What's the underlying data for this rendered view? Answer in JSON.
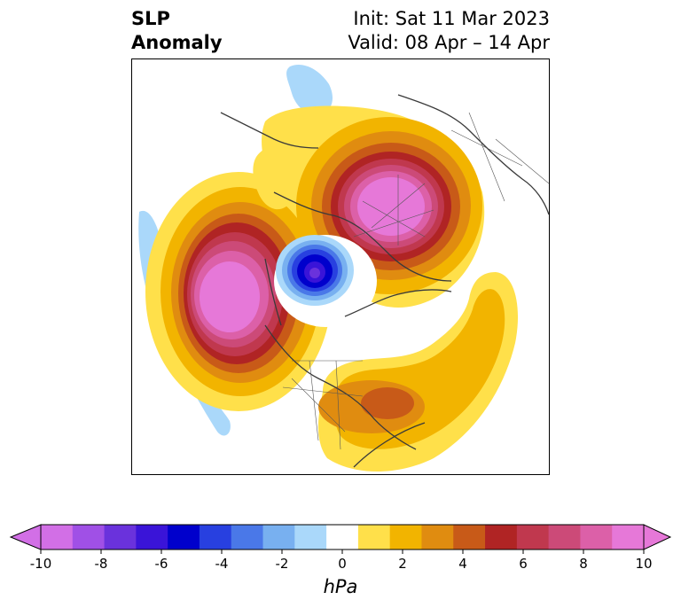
{
  "header": {
    "title_line1": "SLP",
    "title_line2": "Anomaly",
    "init_text": "Init: Sat 11 Mar 2023",
    "valid_text": "Valid: 08 Apr – 14 Apr"
  },
  "colorbar": {
    "levels": [
      -10,
      -9,
      -8,
      -7,
      -6,
      -5,
      -4,
      -3,
      -2,
      -1,
      1,
      2,
      3,
      4,
      5,
      6,
      7,
      8,
      9,
      10
    ],
    "colors": [
      "#d26fe6",
      "#a050e6",
      "#6a32dc",
      "#3a14d8",
      "#0000cc",
      "#2840e0",
      "#4a78e8",
      "#78b0f0",
      "#aad8fa",
      "#ffffff",
      "#ffe04a",
      "#f2b400",
      "#e08c10",
      "#c85a18",
      "#b02424",
      "#c0384e",
      "#cc4a78",
      "#dc60a8",
      "#e678d8"
    ],
    "under_color": "#d26fe6",
    "over_color": "#e678d8",
    "tick_labels": [
      "-10",
      "-8",
      "-6",
      "-4",
      "-2",
      "0",
      "2",
      "4",
      "6",
      "8",
      "10"
    ],
    "units": "hPa"
  },
  "map": {
    "projection": "north-polar-stereographic",
    "features": [
      {
        "name": "north-pacific-high",
        "anomaly_hpa": 10,
        "sign": "positive"
      },
      {
        "name": "northeast-russia-high",
        "anomaly_hpa": 10,
        "sign": "positive"
      },
      {
        "name": "arctic-low",
        "anomaly_hpa": -8,
        "sign": "negative"
      },
      {
        "name": "western-atlantic-ridge",
        "anomaly_hpa": 4,
        "sign": "positive"
      },
      {
        "name": "north-pacific-weak-low",
        "anomaly_hpa": -2,
        "sign": "negative"
      },
      {
        "name": "east-siberia-weak-low",
        "anomaly_hpa": -2,
        "sign": "negative"
      }
    ]
  }
}
